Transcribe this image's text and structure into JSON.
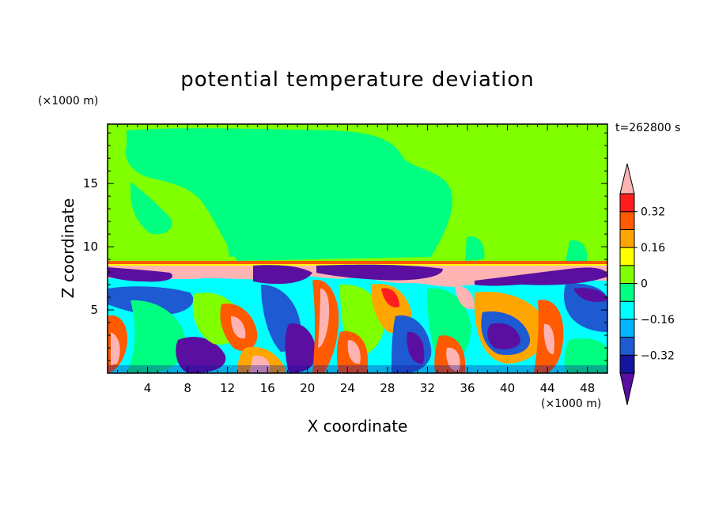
{
  "chart_data": {
    "type": "heatmap",
    "title": "potential temperature deviation",
    "xlabel": "X coordinate",
    "ylabel": "Z coordinate",
    "x_unit": "(×1000 m)",
    "z_unit": "(×1000 m)",
    "time_label": "t=262800 s",
    "xlim": [
      0,
      50
    ],
    "ylim": [
      0,
      19.7
    ],
    "x_ticks": [
      4,
      8,
      12,
      16,
      20,
      24,
      28,
      32,
      36,
      40,
      44,
      48
    ],
    "y_ticks": [
      5,
      10,
      15
    ],
    "colorbar": {
      "levels": [
        -0.4,
        -0.32,
        -0.24,
        -0.16,
        -0.08,
        0,
        0.08,
        0.16,
        0.24,
        0.32,
        0.4
      ],
      "labeled_levels": [
        0.32,
        0.16,
        0,
        -0.16,
        -0.32
      ],
      "colors": [
        "#5a0fa0",
        "#1414a0",
        "#1e5ad2",
        "#00b4ff",
        "#00ffff",
        "#00ff80",
        "#80ff00",
        "#ffff00",
        "#ffa500",
        "#ff5a00",
        "#ff1e1e",
        "#ffb4b4"
      ]
    }
  }
}
